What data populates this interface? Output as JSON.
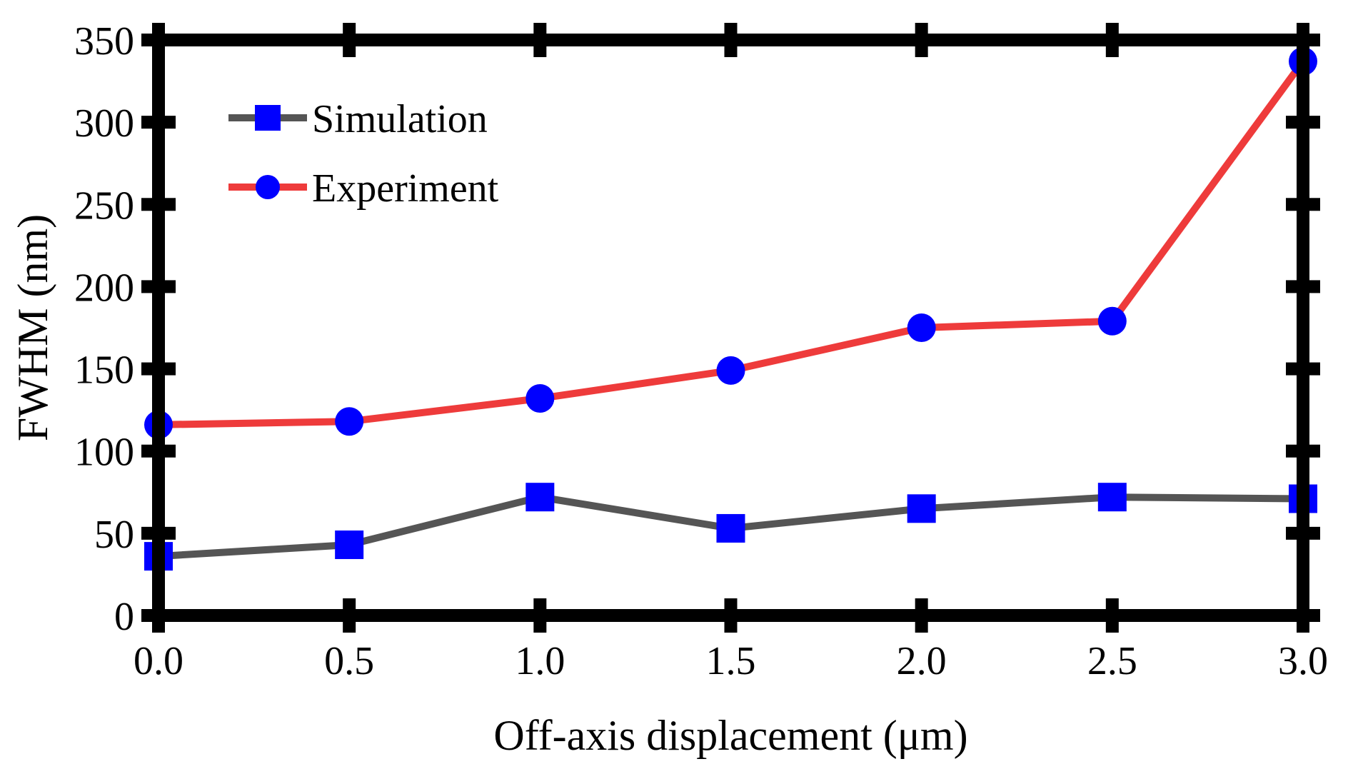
{
  "chart_data": {
    "type": "line",
    "title": "",
    "xlabel": "Off-axis displacement (μm)",
    "ylabel": "FWHM (nm)",
    "xlim": [
      0.0,
      3.0
    ],
    "ylim": [
      0,
      350
    ],
    "grid": false,
    "legend_position": "top-left",
    "x": [
      0.0,
      0.5,
      1.0,
      1.5,
      2.0,
      2.5,
      3.0
    ],
    "x_ticks": [
      "0.0",
      "0.5",
      "1.0",
      "1.5",
      "2.0",
      "2.5",
      "3.0"
    ],
    "y_ticks": [
      "0",
      "50",
      "100",
      "150",
      "200",
      "250",
      "300",
      "350"
    ],
    "series": [
      {
        "name": "Simulation",
        "values": [
          36,
          43,
          72,
          53,
          65,
          72,
          71
        ],
        "line_color": "#555555",
        "marker": "square",
        "marker_color": "#0000ff"
      },
      {
        "name": "Experiment",
        "values": [
          116,
          118,
          132,
          149,
          175,
          179,
          337
        ],
        "line_color": "#ee3b3b",
        "marker": "circle",
        "marker_color": "#0000ff"
      }
    ]
  }
}
